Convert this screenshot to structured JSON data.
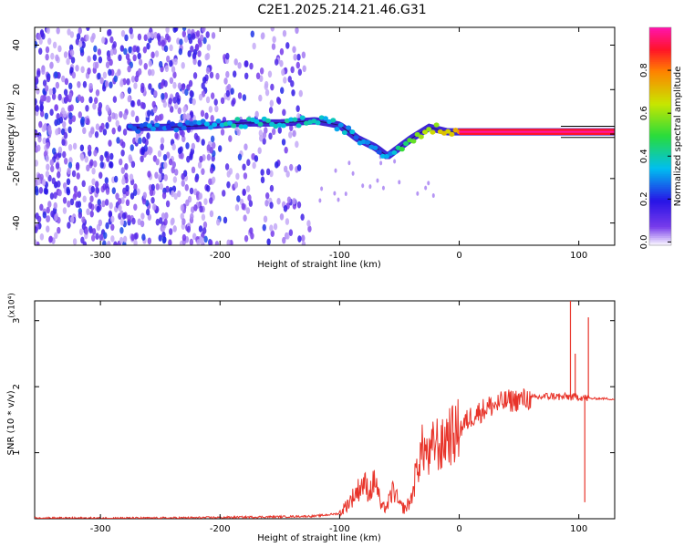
{
  "title": "C2E1.2025.214.21.46.G31",
  "colors": {
    "snr_line": "#e8342a",
    "signal_low": "#5a00e0",
    "signal_high": "#ff1a4a",
    "noise": "#8a2be2"
  },
  "chart_data": [
    {
      "type": "heatmap",
      "title": "C2E1.2025.214.21.46.G31",
      "xlabel": "Height of straight line (km)",
      "ylabel": "Frequency (Hz)",
      "xlim": [
        -355,
        130
      ],
      "ylim": [
        -50,
        48
      ],
      "x_ticks": [
        -300,
        -200,
        -100,
        0,
        100
      ],
      "y_ticks": [
        -40,
        -20,
        0,
        20,
        40
      ],
      "colorbar": {
        "label": "Normalized spectral amplitude",
        "range": [
          0,
          1
        ],
        "ticks": [
          0.0,
          0.2,
          0.4,
          0.6,
          0.8
        ],
        "tick_labels": [
          "0.0",
          "0.2",
          "0.4",
          "0.6",
          "0.8"
        ]
      },
      "signal_track": [
        {
          "x": -275,
          "y": 3,
          "amp": 0.3
        },
        {
          "x": -245,
          "y": 3,
          "amp": 0.25
        },
        {
          "x": -205,
          "y": 4,
          "amp": 0.35
        },
        {
          "x": -180,
          "y": 5,
          "amp": 0.4
        },
        {
          "x": -150,
          "y": 5,
          "amp": 0.38
        },
        {
          "x": -120,
          "y": 6,
          "amp": 0.4
        },
        {
          "x": -100,
          "y": 4,
          "amp": 0.35
        },
        {
          "x": -85,
          "y": -2,
          "amp": 0.3
        },
        {
          "x": -70,
          "y": -6,
          "amp": 0.3
        },
        {
          "x": -60,
          "y": -10,
          "amp": 0.3
        },
        {
          "x": -50,
          "y": -6,
          "amp": 0.45
        },
        {
          "x": -40,
          "y": -2,
          "amp": 0.55
        },
        {
          "x": -25,
          "y": 3,
          "amp": 0.6
        },
        {
          "x": -10,
          "y": 1,
          "amp": 0.7
        },
        {
          "x": 10,
          "y": 1,
          "amp": 0.85
        },
        {
          "x": 40,
          "y": 1,
          "amp": 0.95
        },
        {
          "x": 80,
          "y": 1,
          "amp": 0.98
        },
        {
          "x": 130,
          "y": 1,
          "amp": 1.0
        }
      ]
    },
    {
      "type": "line",
      "xlabel": "Height of straight line (km)",
      "ylabel": "SNR (10 * v/v)",
      "y_multiplier": "(x10⁴)",
      "xlim": [
        -355,
        130
      ],
      "ylim": [
        0,
        3.3
      ],
      "x_ticks": [
        -300,
        -200,
        -100,
        0,
        100
      ],
      "y_ticks": [
        1,
        2,
        3
      ],
      "series": [
        {
          "x": [
            -355,
            -300,
            -250,
            -200,
            -150,
            -120,
            -100,
            -90,
            -80,
            -75,
            -70,
            -65,
            -60,
            -55,
            -50,
            -45,
            -40,
            -35,
            -30,
            -25,
            -20,
            -15,
            -10,
            -5,
            0,
            5,
            10,
            15,
            20,
            25,
            30,
            40,
            50,
            60,
            70,
            80,
            85,
            90,
            95,
            100,
            105,
            110,
            120,
            130
          ],
          "y": [
            0.01,
            0.01,
            0.01,
            0.02,
            0.03,
            0.04,
            0.08,
            0.3,
            0.55,
            0.4,
            0.6,
            0.15,
            0.2,
            0.45,
            0.2,
            0.15,
            0.3,
            0.8,
            1.1,
            0.9,
            1.2,
            1.05,
            1.3,
            1.25,
            1.35,
            1.45,
            1.55,
            1.6,
            1.65,
            1.7,
            1.72,
            1.78,
            1.8,
            1.82,
            1.85,
            1.86,
            1.84,
            1.85,
            1.84,
            1.85,
            1.83,
            1.82,
            1.82,
            1.81
          ],
          "spikes": [
            {
              "x": 93,
              "y": 3.3
            },
            {
              "x": 97,
              "y": 2.5
            },
            {
              "x": 105,
              "y": 0.25
            },
            {
              "x": 108,
              "y": 3.05
            }
          ]
        }
      ]
    }
  ]
}
